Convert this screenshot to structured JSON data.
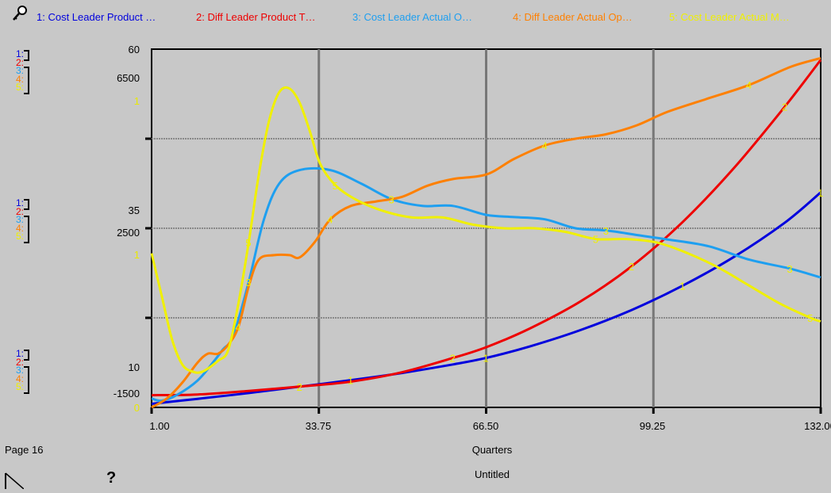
{
  "legend": [
    {
      "key": "1",
      "label": "1: Cost Leader Product …",
      "color": "#0000dd"
    },
    {
      "key": "2",
      "label": "2: Diff Leader Product T…",
      "color": "#ee0000"
    },
    {
      "key": "3",
      "label": "3: Cost Leader Actual O…",
      "color": "#1e9ff0"
    },
    {
      "key": "4",
      "label": "4: Diff Leader Actual Op…",
      "color": "#ff8000"
    },
    {
      "key": "5",
      "label": "5: Cost Leader Actual M…",
      "color": "#f0f000"
    }
  ],
  "scale_keys": {
    "k1": "1:",
    "k2": "2:",
    "k3": "3:",
    "k4": "4:",
    "k5": "5:"
  },
  "scales": {
    "top": {
      "a": "60",
      "b": "6500",
      "c": "1"
    },
    "mid": {
      "a": "35",
      "b": "2500",
      "c": "1"
    },
    "bottom": {
      "a": "10",
      "b": "-1500",
      "c": "0"
    }
  },
  "footer": {
    "page": "Page 16",
    "xlabel": "Quarters",
    "title": "Untitled",
    "help": "?"
  },
  "icons": {
    "top_left": "lock-icon",
    "corner": "page-corner-icon",
    "help": "help-icon"
  },
  "chart_data": {
    "type": "line",
    "xlabel": "Quarters",
    "xlim": [
      1,
      132
    ],
    "x_ticks": [
      "1.00",
      "33.75",
      "66.50",
      "99.25",
      "132.00"
    ],
    "grid": true,
    "legend_position": "top",
    "series": [
      {
        "name": "1: Cost Leader Product …",
        "key": "1",
        "color": "#0000dd",
        "ylim": [
          10,
          60
        ],
        "x": [
          1,
          10,
          20,
          30,
          40,
          50,
          60,
          66.5,
          75,
          85,
          95,
          105,
          115,
          125,
          132
        ],
        "y": [
          10.5,
          11.2,
          12.0,
          12.9,
          13.8,
          14.8,
          16.0,
          16.9,
          18.5,
          20.8,
          23.6,
          27.0,
          31.0,
          35.8,
          40.0
        ]
      },
      {
        "name": "2: Diff Leader Product T…",
        "key": "2",
        "color": "#ee0000",
        "ylim": [
          10,
          60
        ],
        "x": [
          1,
          10,
          20,
          30,
          40,
          50,
          60,
          66.5,
          75,
          85,
          95,
          105,
          115,
          125,
          132
        ],
        "y": [
          11.7,
          11.8,
          12.3,
          12.9,
          13.6,
          14.9,
          16.9,
          18.4,
          21.0,
          24.8,
          29.7,
          35.9,
          43.4,
          52.0,
          58.5
        ]
      },
      {
        "name": "3: Cost Leader Actual O…",
        "key": "3",
        "color": "#1e9ff0",
        "ylim": [
          -1500,
          6500
        ],
        "x": [
          1,
          3,
          6,
          10,
          13,
          15,
          17,
          20,
          23,
          26,
          30,
          36,
          42,
          48,
          54,
          60,
          66.5,
          72,
          78,
          84,
          90,
          96,
          102,
          110,
          118,
          126,
          132
        ],
        "y": [
          -1300,
          -1350,
          -1220,
          -900,
          -500,
          -200,
          100,
          1300,
          2700,
          3500,
          3800,
          3800,
          3500,
          3150,
          3000,
          3000,
          2800,
          2750,
          2700,
          2500,
          2450,
          2350,
          2250,
          2100,
          1800,
          1600,
          1400
        ]
      },
      {
        "name": "4: Diff Leader Actual Op…",
        "key": "4",
        "color": "#ff8000",
        "ylim": [
          -1500,
          6500
        ],
        "x": [
          1,
          4,
          7,
          10,
          12,
          14,
          16,
          18,
          20,
          22,
          25,
          28,
          30,
          33,
          36,
          40,
          45,
          50,
          55,
          60,
          66.5,
          72,
          78,
          84,
          90,
          96,
          102,
          110,
          118,
          126,
          132
        ],
        "y": [
          -1500,
          -1300,
          -950,
          -500,
          -300,
          -300,
          -100,
          300,
          1200,
          1800,
          1900,
          1900,
          1850,
          2200,
          2700,
          3000,
          3100,
          3200,
          3450,
          3600,
          3700,
          4050,
          4350,
          4500,
          4600,
          4800,
          5100,
          5400,
          5700,
          6100,
          6300
        ]
      },
      {
        "name": "5: Cost Leader Actual M…",
        "key": "5",
        "color": "#f0f000",
        "ylim": [
          0,
          1
        ],
        "x": [
          1,
          3,
          5,
          7,
          9,
          11,
          14,
          16,
          18,
          20,
          22,
          24,
          26,
          28,
          30,
          32,
          34,
          37,
          41,
          46,
          52,
          58,
          64,
          70,
          76,
          82,
          88,
          94,
          100,
          106,
          112,
          118,
          124,
          130,
          132
        ],
        "y": [
          0.43,
          0.31,
          0.19,
          0.12,
          0.1,
          0.1,
          0.13,
          0.16,
          0.29,
          0.46,
          0.65,
          0.8,
          0.88,
          0.89,
          0.85,
          0.77,
          0.68,
          0.62,
          0.58,
          0.55,
          0.53,
          0.53,
          0.51,
          0.5,
          0.5,
          0.49,
          0.47,
          0.47,
          0.46,
          0.43,
          0.39,
          0.34,
          0.29,
          0.25,
          0.24
        ]
      }
    ]
  }
}
